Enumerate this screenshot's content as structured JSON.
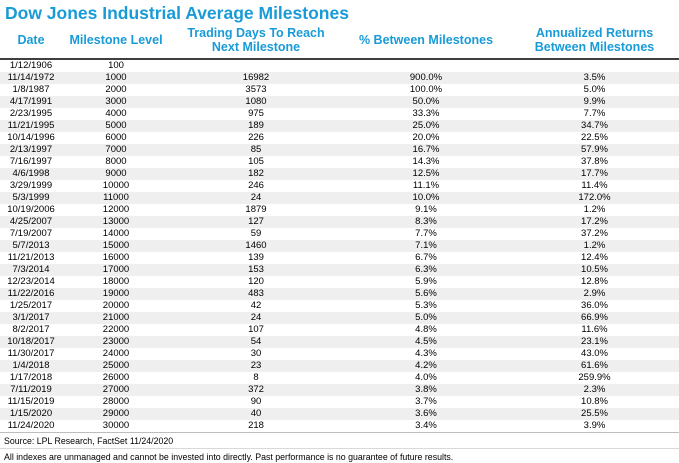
{
  "title": "Dow Jones Industrial Average Milestones",
  "colors": {
    "accent_blue": "#199bd7",
    "row_alt_gray": "#efefef",
    "header_rule": "#3f3f3f"
  },
  "chart_data": {
    "type": "table",
    "title": "Dow Jones Industrial Average Milestones",
    "columns": [
      {
        "label": "Date",
        "line1": "Date",
        "line2": ""
      },
      {
        "label": "Milestone Level",
        "line1": "Milestone Level",
        "line2": ""
      },
      {
        "label": "Trading Days To Reach Next Milestone",
        "line1": "Trading Days To Reach",
        "line2": "Next Milestone"
      },
      {
        "label": "% Between Milestones",
        "line1": "% Between Milestones",
        "line2": ""
      },
      {
        "label": "Annualized Returns Between Milestones",
        "line1": "Annualized Returns",
        "line2": "Between Milestones"
      }
    ],
    "rows": [
      [
        "1/12/1906",
        "100",
        "",
        "",
        ""
      ],
      [
        "11/14/1972",
        "1000",
        "16982",
        "900.0%",
        "3.5%"
      ],
      [
        "1/8/1987",
        "2000",
        "3573",
        "100.0%",
        "5.0%"
      ],
      [
        "4/17/1991",
        "3000",
        "1080",
        "50.0%",
        "9.9%"
      ],
      [
        "2/23/1995",
        "4000",
        "975",
        "33.3%",
        "7.7%"
      ],
      [
        "11/21/1995",
        "5000",
        "189",
        "25.0%",
        "34.7%"
      ],
      [
        "10/14/1996",
        "6000",
        "226",
        "20.0%",
        "22.5%"
      ],
      [
        "2/13/1997",
        "7000",
        "85",
        "16.7%",
        "57.9%"
      ],
      [
        "7/16/1997",
        "8000",
        "105",
        "14.3%",
        "37.8%"
      ],
      [
        "4/6/1998",
        "9000",
        "182",
        "12.5%",
        "17.7%"
      ],
      [
        "3/29/1999",
        "10000",
        "246",
        "11.1%",
        "11.4%"
      ],
      [
        "5/3/1999",
        "11000",
        "24",
        "10.0%",
        "172.0%"
      ],
      [
        "10/19/2006",
        "12000",
        "1879",
        "9.1%",
        "1.2%"
      ],
      [
        "4/25/2007",
        "13000",
        "127",
        "8.3%",
        "17.2%"
      ],
      [
        "7/19/2007",
        "14000",
        "59",
        "7.7%",
        "37.2%"
      ],
      [
        "5/7/2013",
        "15000",
        "1460",
        "7.1%",
        "1.2%"
      ],
      [
        "11/21/2013",
        "16000",
        "139",
        "6.7%",
        "12.4%"
      ],
      [
        "7/3/2014",
        "17000",
        "153",
        "6.3%",
        "10.5%"
      ],
      [
        "12/23/2014",
        "18000",
        "120",
        "5.9%",
        "12.8%"
      ],
      [
        "11/22/2016",
        "19000",
        "483",
        "5.6%",
        "2.9%"
      ],
      [
        "1/25/2017",
        "20000",
        "42",
        "5.3%",
        "36.0%"
      ],
      [
        "3/1/2017",
        "21000",
        "24",
        "5.0%",
        "66.9%"
      ],
      [
        "8/2/2017",
        "22000",
        "107",
        "4.8%",
        "11.6%"
      ],
      [
        "10/18/2017",
        "23000",
        "54",
        "4.5%",
        "23.1%"
      ],
      [
        "11/30/2017",
        "24000",
        "30",
        "4.3%",
        "43.0%"
      ],
      [
        "1/4/2018",
        "25000",
        "23",
        "4.2%",
        "61.6%"
      ],
      [
        "1/17/2018",
        "26000",
        "8",
        "4.0%",
        "259.9%"
      ],
      [
        "7/11/2019",
        "27000",
        "372",
        "3.8%",
        "2.3%"
      ],
      [
        "11/15/2019",
        "28000",
        "90",
        "3.7%",
        "10.8%"
      ],
      [
        "1/15/2020",
        "29000",
        "40",
        "3.6%",
        "25.5%"
      ],
      [
        "11/24/2020",
        "30000",
        "218",
        "3.4%",
        "3.9%"
      ]
    ]
  },
  "footer": {
    "source": "Source: LPL Research, FactSet 11/24/2020",
    "disclaimer": "All indexes are unmanaged and cannot be invested into directly. Past performance is no guarantee of future results."
  }
}
